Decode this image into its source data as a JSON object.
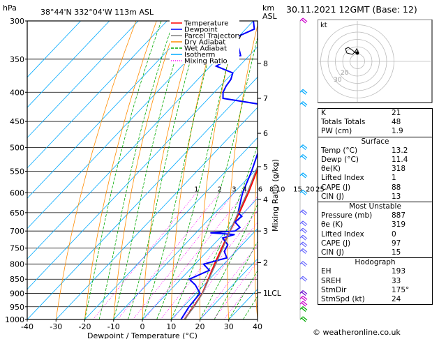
{
  "header": {
    "location": "38°44'N  332°04'W  113m  ASL",
    "datetime": "30.11.2021  12GMT  (Base: 12)",
    "hpa_label": "hPa",
    "km_label": "km",
    "asl_label": "ASL"
  },
  "chart_data": {
    "type": "line",
    "xlabel": "Dewpoint / Temperature (°C)",
    "ylabel": "",
    "right_axis_label": "Mixing Ratio (g/kg)",
    "x_ticks": [
      -40,
      -30,
      -20,
      -10,
      0,
      10,
      20,
      30,
      40
    ],
    "pressure_ticks": [
      300,
      350,
      400,
      450,
      500,
      550,
      600,
      650,
      700,
      750,
      800,
      850,
      900,
      950,
      1000
    ],
    "xlim": [
      -40,
      40
    ],
    "ylim": [
      1000,
      300
    ],
    "y_scale": "log",
    "km_ticks": [
      {
        "label": "8",
        "p": 356
      },
      {
        "label": "7",
        "p": 410
      },
      {
        "label": "6",
        "p": 472
      },
      {
        "label": "5",
        "p": 540
      },
      {
        "label": "4",
        "p": 616
      },
      {
        "label": "3",
        "p": 700
      },
      {
        "label": "2",
        "p": 795
      },
      {
        "label": "1",
        "p": 898
      }
    ],
    "lcl": {
      "label": "LCL",
      "p": 898
    },
    "mixing_ratio_labels": [
      "1",
      "2",
      "3",
      "4",
      "6",
      "8",
      "10",
      "15",
      "20",
      "25"
    ],
    "legend": [
      "Temperature",
      "Dewpoint",
      "Parcel Trajectory",
      "Dry Adiabat",
      "Wet Adiabat",
      "Isotherm",
      "Mixing Ratio"
    ],
    "legend_colors": [
      "#ff0000",
      "#0000ff",
      "#808080",
      "#ff8c00",
      "#00aa00",
      "#00aaff",
      "#ff00ff"
    ],
    "series": [
      {
        "name": "Temperature",
        "color": "#ff0000",
        "points": [
          [
            1000,
            14.6
          ],
          [
            950,
            13.6
          ],
          [
            900,
            12.2
          ],
          [
            850,
            9.6
          ],
          [
            800,
            6.8
          ],
          [
            750,
            4.0
          ],
          [
            700,
            1.2
          ],
          [
            650,
            -1.6
          ],
          [
            600,
            -5.0
          ],
          [
            550,
            -9.2
          ],
          [
            500,
            -13.4
          ],
          [
            450,
            -18.8
          ],
          [
            400,
            -25.0
          ],
          [
            350,
            -32.4
          ],
          [
            300,
            -41.2
          ]
        ]
      },
      {
        "name": "Dewpoint",
        "color": "#0000ff",
        "points": [
          [
            1000,
            13.4
          ],
          [
            950,
            12.0
          ],
          [
            900,
            11.4
          ],
          [
            870,
            7.0
          ],
          [
            850,
            3.0
          ],
          [
            820,
            7.0
          ],
          [
            800,
            3.0
          ],
          [
            780,
            9.0
          ],
          [
            760,
            6.0
          ],
          [
            740,
            5.0
          ],
          [
            720,
            1.0
          ],
          [
            710,
            4.0
          ],
          [
            705,
            -5.0
          ],
          [
            700,
            3.0
          ],
          [
            690,
            3.5
          ],
          [
            675,
            0.0
          ],
          [
            660,
            0.5
          ],
          [
            650,
            -2.0
          ],
          [
            640,
            -3.0
          ],
          [
            620,
            -5.0
          ],
          [
            600,
            -7.0
          ],
          [
            550,
            -11.0
          ],
          [
            500,
            -16.0
          ],
          [
            470,
            -20.5
          ],
          [
            440,
            -21.0
          ],
          [
            420,
            -30.0
          ],
          [
            410,
            -45.0
          ],
          [
            400,
            -47.0
          ],
          [
            390,
            -48.0
          ],
          [
            380,
            -48.5
          ],
          [
            370,
            -50.0
          ],
          [
            360,
            -58.0
          ],
          [
            355,
            -57.0
          ],
          [
            350,
            -58.0
          ],
          [
            345,
            -53.0
          ],
          [
            335,
            -56.0
          ],
          [
            330,
            -60.0
          ],
          [
            320,
            -60.5
          ],
          [
            310,
            -57.0
          ],
          [
            300,
            -60.0
          ]
        ]
      },
      {
        "name": "Parcel Trajectory",
        "color": "#808080",
        "points": [
          [
            1000,
            14.6
          ],
          [
            950,
            13.8
          ],
          [
            898,
            12.2
          ],
          [
            850,
            9.8
          ],
          [
            800,
            7.2
          ],
          [
            750,
            4.4
          ],
          [
            700,
            1.2
          ],
          [
            650,
            -2.0
          ],
          [
            600,
            -5.4
          ],
          [
            550,
            -9.6
          ],
          [
            500,
            -14.0
          ],
          [
            450,
            -19.4
          ],
          [
            400,
            -25.8
          ],
          [
            350,
            -33.4
          ],
          [
            300,
            -42.4
          ]
        ]
      }
    ]
  },
  "indices": [
    {
      "label": "K",
      "value": "21"
    },
    {
      "label": "Totals Totals",
      "value": "48"
    },
    {
      "label": "PW (cm)",
      "value": "1.9"
    }
  ],
  "surface": {
    "title": "Surface",
    "rows": [
      {
        "label": "Temp (°C)",
        "value": "13.2"
      },
      {
        "label": "Dewp (°C)",
        "value": "11.4"
      },
      {
        "label": "θe(K)",
        "value": "318"
      },
      {
        "label": "Lifted Index",
        "value": "1"
      },
      {
        "label": "CAPE (J)",
        "value": "88"
      },
      {
        "label": "CIN (J)",
        "value": "13"
      }
    ]
  },
  "most_unstable": {
    "title": "Most Unstable",
    "rows": [
      {
        "label": "Pressure (mb)",
        "value": "887"
      },
      {
        "label": "θe (K)",
        "value": "319"
      },
      {
        "label": "Lifted Index",
        "value": "0"
      },
      {
        "label": "CAPE (J)",
        "value": "97"
      },
      {
        "label": "CIN (J)",
        "value": "15"
      }
    ]
  },
  "hodograph": {
    "title": "Hodograph",
    "kt_label": "kt",
    "ring_labels": [
      "20",
      "30"
    ],
    "rows": [
      {
        "label": "EH",
        "value": "193"
      },
      {
        "label": "SREH",
        "value": "33"
      },
      {
        "label": "StmDir",
        "value": "175°"
      },
      {
        "label": "StmSpd (kt)",
        "value": "24"
      }
    ]
  },
  "footer": "© weatheronline.co.uk"
}
